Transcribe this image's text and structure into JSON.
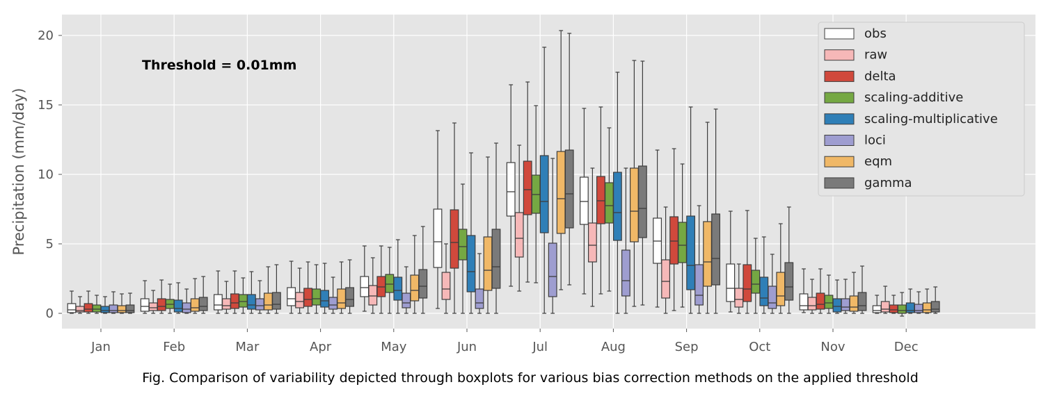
{
  "chart_data": {
    "type": "box",
    "ylabel": "Precipitation (mm/day)",
    "xlabel": "",
    "ylim": [
      -1.2,
      21.1
    ],
    "yticks": [
      0,
      5,
      10,
      15,
      20
    ],
    "grid": true,
    "legend_position": "top-right",
    "annotation": "Threshold = 0.01mm",
    "caption": "Fig. Comparison of variability depicted through boxplots for various bias correction methods on the applied threshold",
    "categories": [
      "Jan",
      "Feb",
      "Mar",
      "Apr",
      "May",
      "Jun",
      "Jul",
      "Aug",
      "Sep",
      "Oct",
      "Nov",
      "Dec"
    ],
    "series": [
      {
        "name": "obs",
        "color": "#ffffff",
        "boxes": [
          {
            "min": 0.0,
            "q1": 0.05,
            "median": 0.25,
            "q3": 0.7,
            "max": 1.6
          },
          {
            "min": 0.0,
            "q1": 0.15,
            "median": 0.5,
            "q3": 1.05,
            "max": 2.35
          },
          {
            "min": 0.0,
            "q1": 0.25,
            "median": 0.6,
            "q3": 1.35,
            "max": 3.05
          },
          {
            "min": 0.0,
            "q1": 0.55,
            "median": 1.05,
            "q3": 1.85,
            "max": 3.75
          },
          {
            "min": 0.15,
            "q1": 1.2,
            "median": 1.85,
            "q3": 2.65,
            "max": 4.85
          },
          {
            "min": 0.35,
            "q1": 3.3,
            "median": 5.15,
            "q3": 7.5,
            "max": 13.15
          },
          {
            "min": 1.95,
            "q1": 7.0,
            "median": 8.75,
            "q3": 10.85,
            "max": 16.45
          },
          {
            "min": 1.4,
            "q1": 6.4,
            "median": 8.05,
            "q3": 9.8,
            "max": 14.75
          },
          {
            "min": 0.45,
            "q1": 3.6,
            "median": 5.2,
            "q3": 6.85,
            "max": 11.75
          },
          {
            "min": 0.1,
            "q1": 0.85,
            "median": 1.8,
            "q3": 3.55,
            "max": 7.35
          },
          {
            "min": 0.05,
            "q1": 0.25,
            "median": 0.55,
            "q3": 1.4,
            "max": 3.2
          },
          {
            "min": 0.0,
            "q1": 0.05,
            "median": 0.2,
            "q3": 0.55,
            "max": 1.3
          }
        ]
      },
      {
        "name": "raw",
        "color": "#f6b8b8",
        "boxes": [
          {
            "min": 0.0,
            "q1": 0.1,
            "median": 0.2,
            "q3": 0.5,
            "max": 1.2
          },
          {
            "min": 0.0,
            "q1": 0.2,
            "median": 0.4,
            "q3": 0.75,
            "max": 1.65
          },
          {
            "min": 0.0,
            "q1": 0.3,
            "median": 0.55,
            "q3": 1.05,
            "max": 2.3
          },
          {
            "min": 0.0,
            "q1": 0.4,
            "median": 0.85,
            "q3": 1.5,
            "max": 3.25
          },
          {
            "min": 0.0,
            "q1": 0.6,
            "median": 1.25,
            "q3": 2.0,
            "max": 4.0
          },
          {
            "min": 0.0,
            "q1": 1.0,
            "median": 1.75,
            "q3": 2.95,
            "max": 5.0
          },
          {
            "min": 1.6,
            "q1": 4.05,
            "median": 5.4,
            "q3": 7.25,
            "max": 12.1
          },
          {
            "min": 0.5,
            "q1": 3.7,
            "median": 4.9,
            "q3": 6.5,
            "max": 10.45
          },
          {
            "min": 0.0,
            "q1": 1.1,
            "median": 2.3,
            "q3": 3.85,
            "max": 7.65
          },
          {
            "min": 0.0,
            "q1": 0.45,
            "median": 1.0,
            "q3": 1.8,
            "max": 3.55
          },
          {
            "min": 0.0,
            "q1": 0.25,
            "median": 0.55,
            "q3": 1.15,
            "max": 2.45
          },
          {
            "min": 0.0,
            "q1": 0.1,
            "median": 0.3,
            "q3": 0.85,
            "max": 1.95
          }
        ]
      },
      {
        "name": "delta",
        "color": "#d0493c",
        "boxes": [
          {
            "min": 0.0,
            "q1": 0.1,
            "median": 0.3,
            "q3": 0.7,
            "max": 1.6
          },
          {
            "min": 0.0,
            "q1": 0.2,
            "median": 0.5,
            "q3": 1.05,
            "max": 2.4
          },
          {
            "min": 0.0,
            "q1": 0.35,
            "median": 0.75,
            "q3": 1.4,
            "max": 3.05
          },
          {
            "min": 0.0,
            "q1": 0.5,
            "median": 1.0,
            "q3": 1.8,
            "max": 3.7
          },
          {
            "min": 0.0,
            "q1": 1.2,
            "median": 1.9,
            "q3": 2.65,
            "max": 4.85
          },
          {
            "min": 0.0,
            "q1": 3.25,
            "median": 5.1,
            "q3": 7.45,
            "max": 13.7
          },
          {
            "min": 2.25,
            "q1": 7.1,
            "median": 8.9,
            "q3": 10.95,
            "max": 16.65
          },
          {
            "min": 1.4,
            "q1": 6.45,
            "median": 8.1,
            "q3": 9.85,
            "max": 14.85
          },
          {
            "min": 0.2,
            "q1": 3.55,
            "median": 5.2,
            "q3": 6.95,
            "max": 11.85
          },
          {
            "min": 0.0,
            "q1": 0.85,
            "median": 1.75,
            "q3": 3.5,
            "max": 7.4
          },
          {
            "min": 0.0,
            "q1": 0.3,
            "median": 0.65,
            "q3": 1.45,
            "max": 3.2
          },
          {
            "min": 0.0,
            "q1": 0.05,
            "median": 0.25,
            "q3": 0.6,
            "max": 1.3
          }
        ]
      },
      {
        "name": "scaling-additive",
        "color": "#75a843",
        "boxes": [
          {
            "min": 0.0,
            "q1": 0.1,
            "median": 0.3,
            "q3": 0.6,
            "max": 1.3
          },
          {
            "min": 0.0,
            "q1": 0.35,
            "median": 0.65,
            "q3": 1.0,
            "max": 2.1
          },
          {
            "min": 0.0,
            "q1": 0.45,
            "median": 0.85,
            "q3": 1.35,
            "max": 2.55
          },
          {
            "min": 0.0,
            "q1": 0.6,
            "median": 1.05,
            "q3": 1.75,
            "max": 3.5
          },
          {
            "min": 0.0,
            "q1": 1.5,
            "median": 2.1,
            "q3": 2.8,
            "max": 4.75
          },
          {
            "min": 0.0,
            "q1": 3.85,
            "median": 4.8,
            "q3": 6.05,
            "max": 9.3
          },
          {
            "min": 2.2,
            "q1": 7.2,
            "median": 8.55,
            "q3": 9.95,
            "max": 14.95
          },
          {
            "min": 1.6,
            "q1": 6.5,
            "median": 7.75,
            "q3": 9.4,
            "max": 13.35
          },
          {
            "min": 0.45,
            "q1": 3.65,
            "median": 4.9,
            "q3": 6.55,
            "max": 10.75
          },
          {
            "min": 0.0,
            "q1": 1.45,
            "median": 2.1,
            "q3": 3.1,
            "max": 5.4
          },
          {
            "min": 0.0,
            "q1": 0.35,
            "median": 0.75,
            "q3": 1.3,
            "max": 2.75
          },
          {
            "min": -0.2,
            "q1": 0.0,
            "median": 0.2,
            "q3": 0.6,
            "max": 1.5
          }
        ]
      },
      {
        "name": "scaling-multiplicative",
        "color": "#2f7fb7",
        "boxes": [
          {
            "min": 0.0,
            "q1": 0.05,
            "median": 0.2,
            "q3": 0.5,
            "max": 1.2
          },
          {
            "min": 0.0,
            "q1": 0.1,
            "median": 0.35,
            "q3": 0.95,
            "max": 2.2
          },
          {
            "min": 0.0,
            "q1": 0.3,
            "median": 0.6,
            "q3": 1.35,
            "max": 3.0
          },
          {
            "min": 0.0,
            "q1": 0.45,
            "median": 0.9,
            "q3": 1.65,
            "max": 3.6
          },
          {
            "min": 0.0,
            "q1": 0.95,
            "median": 1.65,
            "q3": 2.6,
            "max": 5.3
          },
          {
            "min": 0.0,
            "q1": 1.55,
            "median": 3.0,
            "q3": 5.6,
            "max": 11.55
          },
          {
            "min": 0.0,
            "q1": 5.8,
            "median": 8.05,
            "q3": 11.35,
            "max": 19.15
          },
          {
            "min": 0.0,
            "q1": 5.25,
            "median": 7.25,
            "q3": 10.15,
            "max": 17.35
          },
          {
            "min": 0.0,
            "q1": 1.7,
            "median": 3.45,
            "q3": 7.0,
            "max": 14.85
          },
          {
            "min": 0.0,
            "q1": 0.55,
            "median": 1.1,
            "q3": 2.6,
            "max": 5.5
          },
          {
            "min": 0.0,
            "q1": 0.1,
            "median": 0.5,
            "q3": 1.05,
            "max": 2.4
          },
          {
            "min": 0.0,
            "q1": 0.05,
            "median": 0.2,
            "q3": 0.75,
            "max": 1.75
          }
        ]
      },
      {
        "name": "loci",
        "color": "#9e9dd0",
        "boxes": [
          {
            "min": 0.0,
            "q1": 0.05,
            "median": 0.2,
            "q3": 0.6,
            "max": 1.55
          },
          {
            "min": 0.0,
            "q1": 0.05,
            "median": 0.3,
            "q3": 0.75,
            "max": 1.75
          },
          {
            "min": 0.0,
            "q1": 0.25,
            "median": 0.55,
            "q3": 1.05,
            "max": 2.35
          },
          {
            "min": 0.0,
            "q1": 0.3,
            "median": 0.6,
            "q3": 1.15,
            "max": 2.6
          },
          {
            "min": 0.0,
            "q1": 0.4,
            "median": 0.75,
            "q3": 1.45,
            "max": 3.35
          },
          {
            "min": 0.0,
            "q1": 0.35,
            "median": 0.75,
            "q3": 1.75,
            "max": 4.3
          },
          {
            "min": 0.0,
            "q1": 1.2,
            "median": 2.65,
            "q3": 5.05,
            "max": 11.15
          },
          {
            "min": 0.0,
            "q1": 1.25,
            "median": 2.35,
            "q3": 4.55,
            "max": 10.45
          },
          {
            "min": 0.0,
            "q1": 0.6,
            "median": 1.3,
            "q3": 3.5,
            "max": 7.75
          },
          {
            "min": 0.0,
            "q1": 0.35,
            "median": 0.75,
            "q3": 1.95,
            "max": 4.25
          },
          {
            "min": 0.0,
            "q1": 0.2,
            "median": 0.45,
            "q3": 1.05,
            "max": 2.45
          },
          {
            "min": 0.0,
            "q1": 0.05,
            "median": 0.2,
            "q3": 0.65,
            "max": 1.55
          }
        ]
      },
      {
        "name": "eqm",
        "color": "#f0b867",
        "boxes": [
          {
            "min": 0.0,
            "q1": 0.05,
            "median": 0.2,
            "q3": 0.55,
            "max": 1.4
          },
          {
            "min": 0.0,
            "q1": 0.15,
            "median": 0.4,
            "q3": 1.05,
            "max": 2.5
          },
          {
            "min": 0.0,
            "q1": 0.25,
            "median": 0.6,
            "q3": 1.45,
            "max": 3.35
          },
          {
            "min": 0.0,
            "q1": 0.35,
            "median": 0.75,
            "q3": 1.75,
            "max": 3.7
          },
          {
            "min": 0.0,
            "q1": 0.9,
            "median": 1.65,
            "q3": 2.75,
            "max": 5.6
          },
          {
            "min": 0.0,
            "q1": 1.65,
            "median": 3.1,
            "q3": 5.5,
            "max": 11.25
          },
          {
            "min": 1.7,
            "q1": 5.75,
            "median": 8.25,
            "q3": 11.65,
            "max": 20.35
          },
          {
            "min": 0.5,
            "q1": 5.15,
            "median": 7.35,
            "q3": 10.45,
            "max": 18.2
          },
          {
            "min": 0.0,
            "q1": 1.95,
            "median": 3.7,
            "q3": 6.6,
            "max": 13.75
          },
          {
            "min": 0.0,
            "q1": 0.55,
            "median": 1.25,
            "q3": 2.95,
            "max": 6.45
          },
          {
            "min": 0.0,
            "q1": 0.15,
            "median": 0.45,
            "q3": 1.25,
            "max": 2.95
          },
          {
            "min": 0.0,
            "q1": 0.05,
            "median": 0.25,
            "q3": 0.75,
            "max": 1.75
          }
        ]
      },
      {
        "name": "gamma",
        "color": "#7a7a7a",
        "boxes": [
          {
            "min": 0.0,
            "q1": 0.05,
            "median": 0.2,
            "q3": 0.6,
            "max": 1.45
          },
          {
            "min": 0.0,
            "q1": 0.2,
            "median": 0.5,
            "q3": 1.15,
            "max": 2.65
          },
          {
            "min": 0.0,
            "q1": 0.3,
            "median": 0.65,
            "q3": 1.5,
            "max": 3.5
          },
          {
            "min": 0.0,
            "q1": 0.5,
            "median": 1.0,
            "q3": 1.85,
            "max": 3.85
          },
          {
            "min": 0.0,
            "q1": 1.1,
            "median": 1.95,
            "q3": 3.15,
            "max": 6.25
          },
          {
            "min": 0.0,
            "q1": 1.8,
            "median": 3.35,
            "q3": 6.05,
            "max": 12.25
          },
          {
            "min": 2.05,
            "q1": 6.15,
            "median": 8.6,
            "q3": 11.75,
            "max": 20.15
          },
          {
            "min": 0.6,
            "q1": 5.45,
            "median": 7.55,
            "q3": 10.6,
            "max": 18.15
          },
          {
            "min": 0.0,
            "q1": 2.05,
            "median": 3.95,
            "q3": 7.15,
            "max": 14.7
          },
          {
            "min": 0.0,
            "q1": 0.95,
            "median": 1.9,
            "q3": 3.65,
            "max": 7.65
          },
          {
            "min": 0.0,
            "q1": 0.2,
            "median": 0.55,
            "q3": 1.5,
            "max": 3.4
          },
          {
            "min": 0.0,
            "q1": 0.1,
            "median": 0.3,
            "q3": 0.85,
            "max": 1.9
          }
        ]
      }
    ]
  }
}
